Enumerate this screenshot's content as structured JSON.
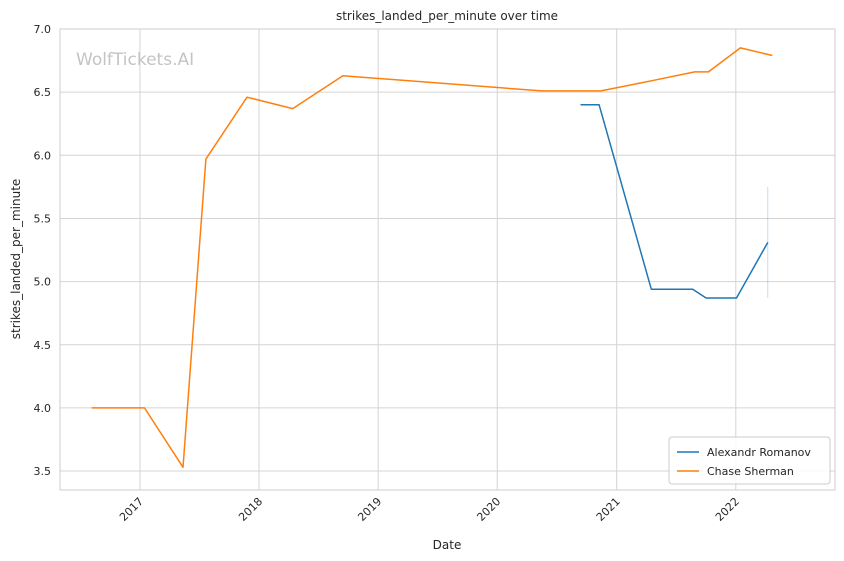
{
  "watermark": "WolfTickets.AI",
  "chart_data": {
    "type": "line",
    "title": "strikes_landed_per_minute over time",
    "xlabel": "Date",
    "ylabel": "strikes_landed_per_minute",
    "xlim": [
      "2016-05-01",
      "2022-11-01"
    ],
    "ylim": [
      3.35,
      7.0
    ],
    "x_ticks": [
      "2017",
      "2018",
      "2019",
      "2020",
      "2021",
      "2022"
    ],
    "y_ticks": [
      "3.5",
      "4.0",
      "4.5",
      "5.0",
      "5.5",
      "6.0",
      "6.5",
      "7.0"
    ],
    "grid": true,
    "legend_position": "bottom-right",
    "series": [
      {
        "name": "Alexandr Romanov",
        "color": "#1f77b4",
        "points": [
          [
            "2020-09-12",
            6.4
          ],
          [
            "2020-11-08",
            6.4
          ],
          [
            "2021-04-17",
            4.94
          ],
          [
            "2021-08-22",
            4.94
          ],
          [
            "2021-10-02",
            4.87
          ],
          [
            "2022-01-03",
            4.87
          ],
          [
            "2022-04-09",
            5.31
          ]
        ],
        "band": [
          [
            "2022-04-09",
            4.87,
            5.75
          ]
        ]
      },
      {
        "name": "Chase Sherman",
        "color": "#ff7f0e",
        "points": [
          [
            "2016-08-06",
            4.0
          ],
          [
            "2017-01-15",
            4.0
          ],
          [
            "2017-05-13",
            3.53
          ],
          [
            "2017-07-22",
            5.97
          ],
          [
            "2017-11-25",
            6.46
          ],
          [
            "2018-04-14",
            6.37
          ],
          [
            "2018-09-15",
            6.63
          ],
          [
            "2020-05-16",
            6.51
          ],
          [
            "2020-11-14",
            6.51
          ],
          [
            "2021-04-17",
            6.59
          ],
          [
            "2021-08-28",
            6.66
          ],
          [
            "2021-10-09",
            6.66
          ],
          [
            "2022-01-15",
            6.85
          ],
          [
            "2022-04-23",
            6.79
          ]
        ]
      }
    ]
  }
}
